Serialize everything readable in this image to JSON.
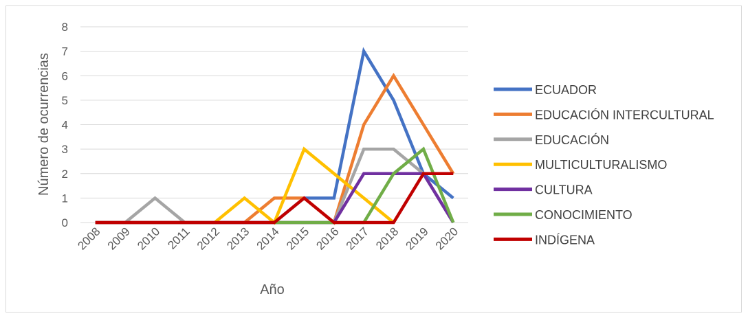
{
  "chart_data": {
    "type": "line",
    "title": "",
    "xlabel": "Año",
    "ylabel": "Número de ocurrencias",
    "ylim": [
      0,
      8
    ],
    "yticks": [
      "0",
      "1",
      "2",
      "3",
      "4",
      "5",
      "6",
      "7",
      "8"
    ],
    "categories": [
      "2008",
      "2009",
      "2010",
      "2011",
      "2012",
      "2013",
      "2014",
      "2015",
      "2016",
      "2017",
      "2018",
      "2019",
      "2020"
    ],
    "grid": true,
    "legend_position": "right",
    "series": [
      {
        "name": "ECUADOR",
        "color": "#4472C4",
        "values": [
          0,
          0,
          0,
          0,
          0,
          0,
          0,
          1,
          1,
          7,
          5,
          2,
          1
        ]
      },
      {
        "name": "EDUCACIÓN INTERCULTURAL",
        "color": "#ED7D31",
        "values": [
          0,
          0,
          0,
          0,
          0,
          0,
          1,
          1,
          0,
          4,
          6,
          4,
          2
        ]
      },
      {
        "name": "EDUCACIÓN",
        "color": "#A5A5A5",
        "values": [
          0,
          0,
          1,
          0,
          0,
          0,
          0,
          0,
          0,
          3,
          3,
          2,
          0
        ]
      },
      {
        "name": "MULTICULTURALISMO",
        "color": "#FFC000",
        "values": [
          0,
          0,
          0,
          0,
          0,
          1,
          0,
          3,
          2,
          1,
          0,
          null,
          null
        ]
      },
      {
        "name": "CULTURA",
        "color": "#7030A0",
        "values": [
          0,
          0,
          0,
          0,
          0,
          0,
          0,
          0,
          0,
          2,
          2,
          2,
          0
        ]
      },
      {
        "name": "CONOCIMIENTO",
        "color": "#70AD47",
        "values": [
          null,
          null,
          null,
          null,
          null,
          null,
          0,
          0,
          0,
          0,
          2,
          3,
          0
        ]
      },
      {
        "name": "INDÍGENA",
        "color": "#C00000",
        "values": [
          0,
          0,
          0,
          0,
          0,
          0,
          0,
          1,
          0,
          0,
          0,
          2,
          2
        ]
      }
    ]
  }
}
